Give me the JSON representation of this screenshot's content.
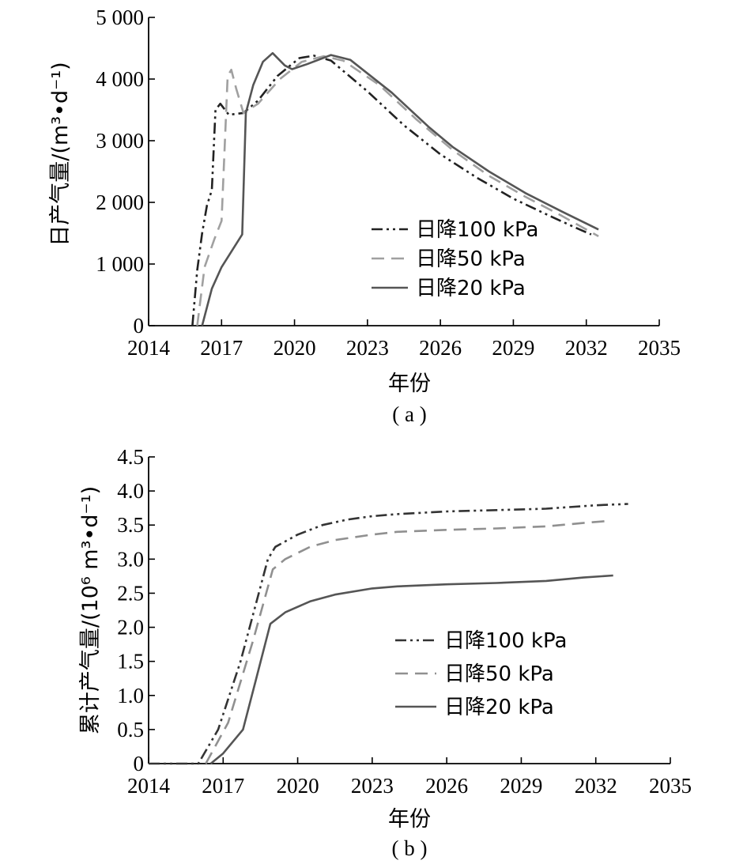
{
  "chart_data": [
    {
      "type": "line",
      "caption": "( a )",
      "xlabel": "年份",
      "ylabel": "日产气量/(m³•d⁻¹)",
      "xlim": [
        2014,
        2035
      ],
      "ylim": [
        0,
        5000
      ],
      "xticks": [
        2014,
        2017,
        2020,
        2023,
        2026,
        2029,
        2032,
        2035
      ],
      "yticks": [
        0,
        1000,
        2000,
        3000,
        4000,
        5000
      ],
      "ytick_labels": [
        "0",
        "1 000",
        "2 000",
        "3 000",
        "4 000",
        "5 000"
      ],
      "legend_position": "center-right",
      "series": [
        {
          "name": "日降100 kPa",
          "style": "dash-dot-dot",
          "color": "#222222",
          "points": [
            [
              2015.8,
              0
            ],
            [
              2016.0,
              900
            ],
            [
              2016.2,
              1500
            ],
            [
              2016.4,
              1950
            ],
            [
              2016.6,
              2200
            ],
            [
              2016.75,
              3500
            ],
            [
              2016.95,
              3600
            ],
            [
              2017.3,
              3420
            ],
            [
              2017.9,
              3450
            ],
            [
              2018.5,
              3650
            ],
            [
              2019.3,
              4050
            ],
            [
              2020.2,
              4340
            ],
            [
              2020.8,
              4380
            ],
            [
              2021.5,
              4300
            ],
            [
              2023.0,
              3800
            ],
            [
              2024.5,
              3250
            ],
            [
              2026.0,
              2780
            ],
            [
              2027.5,
              2400
            ],
            [
              2029.0,
              2060
            ],
            [
              2030.5,
              1780
            ],
            [
              2031.5,
              1600
            ],
            [
              2032.2,
              1480
            ]
          ]
        },
        {
          "name": "日降50 kPa",
          "style": "dashed",
          "color": "#a0a0a0",
          "points": [
            [
              2016.0,
              0
            ],
            [
              2016.3,
              950
            ],
            [
              2016.7,
              1400
            ],
            [
              2017.0,
              1700
            ],
            [
              2017.25,
              4050
            ],
            [
              2017.4,
              4150
            ],
            [
              2017.6,
              3850
            ],
            [
              2017.9,
              3450
            ],
            [
              2018.5,
              3600
            ],
            [
              2019.4,
              4000
            ],
            [
              2020.3,
              4280
            ],
            [
              2021.2,
              4370
            ],
            [
              2022.0,
              4300
            ],
            [
              2023.5,
              3900
            ],
            [
              2025.0,
              3350
            ],
            [
              2026.5,
              2850
            ],
            [
              2028.0,
              2430
            ],
            [
              2029.5,
              2090
            ],
            [
              2031.0,
              1780
            ],
            [
              2032.5,
              1450
            ]
          ]
        },
        {
          "name": "日降20 kPa",
          "style": "solid",
          "color": "#555555",
          "points": [
            [
              2016.2,
              0
            ],
            [
              2016.6,
              600
            ],
            [
              2017.0,
              950
            ],
            [
              2017.4,
              1200
            ],
            [
              2017.85,
              1480
            ],
            [
              2018.0,
              3450
            ],
            [
              2018.3,
              3900
            ],
            [
              2018.7,
              4280
            ],
            [
              2019.1,
              4420
            ],
            [
              2019.6,
              4220
            ],
            [
              2019.9,
              4160
            ],
            [
              2020.5,
              4240
            ],
            [
              2021.5,
              4390
            ],
            [
              2022.3,
              4310
            ],
            [
              2024.0,
              3780
            ],
            [
              2025.5,
              3230
            ],
            [
              2026.5,
              2900
            ],
            [
              2028.0,
              2500
            ],
            [
              2029.5,
              2150
            ],
            [
              2031.0,
              1850
            ],
            [
              2032.5,
              1560
            ]
          ]
        }
      ]
    },
    {
      "type": "line",
      "caption": "( b )",
      "xlabel": "年份",
      "ylabel": "累计产气量/(10⁶ m³•d⁻¹)",
      "xlim": [
        2014,
        2035
      ],
      "ylim": [
        0,
        4.5
      ],
      "xticks": [
        2014,
        2017,
        2020,
        2023,
        2026,
        2029,
        2032,
        2035
      ],
      "yticks": [
        0,
        0.5,
        1.0,
        1.5,
        2.0,
        2.5,
        3.0,
        3.5,
        4.0,
        4.5
      ],
      "ytick_labels": [
        "0",
        "0.5",
        "1.0",
        "1.5",
        "2.0",
        "2.5",
        "3.0",
        "3.5",
        "4.0",
        "4.5"
      ],
      "legend_position": "center-right",
      "series": [
        {
          "name": "日降100 kPa",
          "style": "dash-dot-dot",
          "color": "#333333",
          "points": [
            [
              2014.0,
              0
            ],
            [
              2016.0,
              0
            ],
            [
              2016.8,
              0.5
            ],
            [
              2017.7,
              1.5
            ],
            [
              2018.8,
              3.0
            ],
            [
              2019.1,
              3.18
            ],
            [
              2020.0,
              3.36
            ],
            [
              2021.0,
              3.5
            ],
            [
              2022.0,
              3.58
            ],
            [
              2023.0,
              3.63
            ],
            [
              2024.0,
              3.66
            ],
            [
              2026.0,
              3.7
            ],
            [
              2028.0,
              3.72
            ],
            [
              2030.0,
              3.74
            ],
            [
              2032.0,
              3.79
            ],
            [
              2033.3,
              3.81
            ]
          ]
        },
        {
          "name": "日降50 kPa",
          "style": "dashed",
          "color": "#909090",
          "points": [
            [
              2016.3,
              0
            ],
            [
              2017.2,
              0.6
            ],
            [
              2018.2,
              1.8
            ],
            [
              2019.0,
              2.85
            ],
            [
              2019.5,
              3.0
            ],
            [
              2020.5,
              3.18
            ],
            [
              2021.5,
              3.28
            ],
            [
              2023.0,
              3.36
            ],
            [
              2024.0,
              3.4
            ],
            [
              2026.0,
              3.43
            ],
            [
              2028.0,
              3.45
            ],
            [
              2030.0,
              3.48
            ],
            [
              2031.5,
              3.53
            ],
            [
              2032.5,
              3.56
            ]
          ]
        },
        {
          "name": "日降20 kPa",
          "style": "solid",
          "color": "#555555",
          "points": [
            [
              2016.5,
              0
            ],
            [
              2017.0,
              0.15
            ],
            [
              2017.8,
              0.5
            ],
            [
              2018.3,
              1.2
            ],
            [
              2018.9,
              2.05
            ],
            [
              2019.5,
              2.22
            ],
            [
              2020.5,
              2.38
            ],
            [
              2021.5,
              2.48
            ],
            [
              2023.0,
              2.57
            ],
            [
              2024.0,
              2.6
            ],
            [
              2026.0,
              2.63
            ],
            [
              2028.0,
              2.65
            ],
            [
              2030.0,
              2.68
            ],
            [
              2031.5,
              2.73
            ],
            [
              2032.7,
              2.76
            ]
          ]
        }
      ]
    }
  ]
}
